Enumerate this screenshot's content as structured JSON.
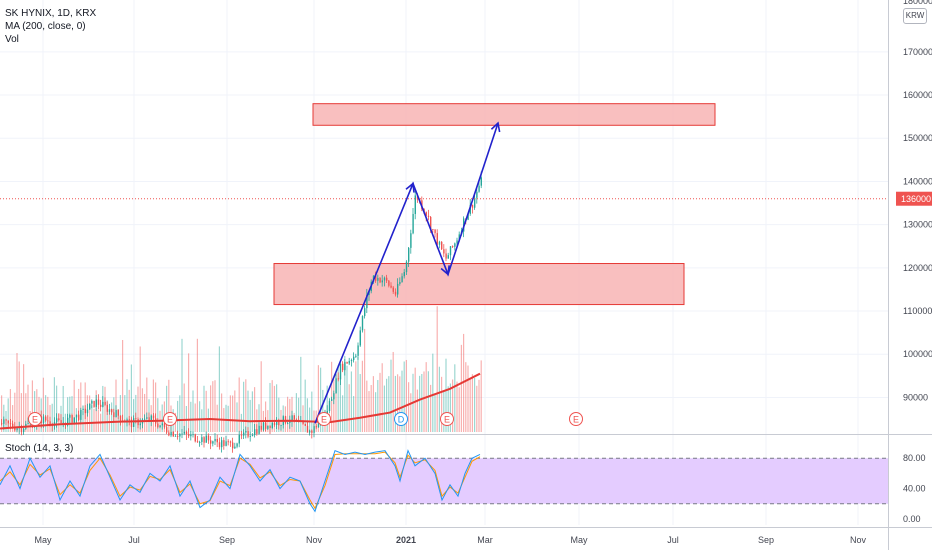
{
  "legend": {
    "symbol": "SK HYNIX, 1D, KRX",
    "ma": "MA (200, close, 0)",
    "vol": "Vol",
    "stoch": "Stoch (14, 3, 3)"
  },
  "currency": "KRW",
  "price_top_clip": "180000",
  "last_price": "136000",
  "colors": {
    "up": "#26a69a",
    "down": "#ef5350",
    "ma": "#e53935",
    "arrow": "#2222cc",
    "zone_fill": "#f8b4b4",
    "zone_stroke": "#e53935",
    "stoch_band": "#e4ccff",
    "stoch_k": "#2196f3",
    "stoch_d": "#ff9800",
    "axis_text": "#434651"
  },
  "chart_data": [
    {
      "type": "candlestick",
      "title": "SK HYNIX, 1D, KRX",
      "x_ticks": [
        "May",
        "Jul",
        "Sep",
        "Nov",
        "2021",
        "Mar",
        "May",
        "Jul",
        "Sep",
        "Nov"
      ],
      "y_ticks": [
        90000,
        100000,
        110000,
        120000,
        130000,
        140000,
        150000,
        160000,
        170000
      ],
      "ylim": [
        82000,
        182000
      ],
      "last_price": 136000,
      "ma_200": {
        "name": "MA (200, close, 0)",
        "points": [
          [
            0,
            82800
          ],
          [
            60,
            83800
          ],
          [
            120,
            84400
          ],
          [
            160,
            84600
          ],
          [
            210,
            85000
          ],
          [
            250,
            84500
          ],
          [
            290,
            84600
          ],
          [
            330,
            84300
          ],
          [
            360,
            85300
          ],
          [
            390,
            86500
          ],
          [
            420,
            89500
          ],
          [
            450,
            92000
          ],
          [
            480,
            95500
          ]
        ]
      },
      "price_path": [
        [
          0,
          84000
        ],
        [
          20,
          83000
        ],
        [
          40,
          85000
        ],
        [
          60,
          84000
        ],
        [
          80,
          86000
        ],
        [
          95,
          89000
        ],
        [
          110,
          87000
        ],
        [
          130,
          84000
        ],
        [
          150,
          85000
        ],
        [
          170,
          82000
        ],
        [
          190,
          81000
        ],
        [
          210,
          80000
        ],
        [
          230,
          79000
        ],
        [
          250,
          82000
        ],
        [
          270,
          84000
        ],
        [
          290,
          85000
        ],
        [
          310,
          82000
        ],
        [
          325,
          86000
        ],
        [
          340,
          97000
        ],
        [
          355,
          100000
        ],
        [
          365,
          112000
        ],
        [
          372,
          118000
        ],
        [
          385,
          117000
        ],
        [
          395,
          114000
        ],
        [
          405,
          120000
        ],
        [
          415,
          137000
        ],
        [
          425,
          133000
        ],
        [
          435,
          127000
        ],
        [
          445,
          122000
        ],
        [
          455,
          126000
        ],
        [
          465,
          132000
        ],
        [
          472,
          135000
        ],
        [
          480,
          140000
        ]
      ],
      "zones": [
        {
          "from_x": 313,
          "to_x": 715,
          "low": 153000,
          "high": 158000
        },
        {
          "from_x": 274,
          "to_x": 684,
          "low": 111500,
          "high": 121000
        }
      ],
      "drawing_arrow": [
        [
          315,
          84000
        ],
        [
          413,
          139500
        ],
        [
          448,
          118500
        ],
        [
          498,
          153500
        ]
      ],
      "event_markers": [
        {
          "label": "E",
          "x": 35
        },
        {
          "label": "E",
          "x": 170
        },
        {
          "label": "E",
          "x": 324
        },
        {
          "label": "D",
          "x": 401
        },
        {
          "label": "E",
          "x": 447
        },
        {
          "label": "E",
          "x": 576
        }
      ]
    },
    {
      "type": "line",
      "title": "Stoch (14, 3, 3)",
      "y_ticks": [
        0,
        40,
        80
      ],
      "y_tick_labels": [
        "0.00",
        "40.00",
        "80.00"
      ],
      "ylim": [
        -8,
        108
      ],
      "band": [
        20,
        80
      ],
      "k_points": [
        [
          0,
          45
        ],
        [
          10,
          70
        ],
        [
          20,
          40
        ],
        [
          30,
          80
        ],
        [
          40,
          55
        ],
        [
          50,
          70
        ],
        [
          60,
          25
        ],
        [
          70,
          50
        ],
        [
          80,
          30
        ],
        [
          90,
          70
        ],
        [
          100,
          85
        ],
        [
          110,
          55
        ],
        [
          120,
          25
        ],
        [
          130,
          45
        ],
        [
          140,
          35
        ],
        [
          150,
          60
        ],
        [
          160,
          50
        ],
        [
          170,
          70
        ],
        [
          180,
          30
        ],
        [
          190,
          50
        ],
        [
          200,
          15
        ],
        [
          210,
          25
        ],
        [
          220,
          55
        ],
        [
          230,
          40
        ],
        [
          240,
          85
        ],
        [
          250,
          70
        ],
        [
          260,
          50
        ],
        [
          270,
          65
        ],
        [
          280,
          40
        ],
        [
          290,
          55
        ],
        [
          300,
          50
        ],
        [
          310,
          20
        ],
        [
          315,
          10
        ],
        [
          325,
          50
        ],
        [
          335,
          90
        ],
        [
          345,
          85
        ],
        [
          355,
          88
        ],
        [
          365,
          85
        ],
        [
          375,
          88
        ],
        [
          385,
          90
        ],
        [
          395,
          70
        ],
        [
          400,
          50
        ],
        [
          408,
          90
        ],
        [
          415,
          70
        ],
        [
          425,
          80
        ],
        [
          435,
          60
        ],
        [
          442,
          25
        ],
        [
          450,
          45
        ],
        [
          458,
          30
        ],
        [
          465,
          60
        ],
        [
          472,
          80
        ],
        [
          480,
          85
        ]
      ],
      "d_points": [
        [
          0,
          50
        ],
        [
          10,
          62
        ],
        [
          20,
          45
        ],
        [
          30,
          72
        ],
        [
          40,
          58
        ],
        [
          50,
          66
        ],
        [
          60,
          32
        ],
        [
          70,
          45
        ],
        [
          80,
          34
        ],
        [
          90,
          64
        ],
        [
          100,
          80
        ],
        [
          110,
          58
        ],
        [
          120,
          30
        ],
        [
          130,
          42
        ],
        [
          140,
          38
        ],
        [
          150,
          56
        ],
        [
          160,
          52
        ],
        [
          170,
          65
        ],
        [
          180,
          35
        ],
        [
          190,
          46
        ],
        [
          200,
          20
        ],
        [
          210,
          24
        ],
        [
          220,
          50
        ],
        [
          230,
          44
        ],
        [
          240,
          80
        ],
        [
          250,
          72
        ],
        [
          260,
          54
        ],
        [
          270,
          62
        ],
        [
          280,
          44
        ],
        [
          290,
          52
        ],
        [
          300,
          50
        ],
        [
          310,
          25
        ],
        [
          315,
          14
        ],
        [
          325,
          44
        ],
        [
          335,
          85
        ],
        [
          345,
          86
        ],
        [
          355,
          86
        ],
        [
          365,
          86
        ],
        [
          375,
          86
        ],
        [
          385,
          88
        ],
        [
          395,
          74
        ],
        [
          400,
          55
        ],
        [
          408,
          84
        ],
        [
          415,
          74
        ],
        [
          425,
          78
        ],
        [
          435,
          64
        ],
        [
          442,
          30
        ],
        [
          450,
          42
        ],
        [
          458,
          34
        ],
        [
          465,
          55
        ],
        [
          472,
          76
        ],
        [
          480,
          82
        ]
      ]
    }
  ]
}
